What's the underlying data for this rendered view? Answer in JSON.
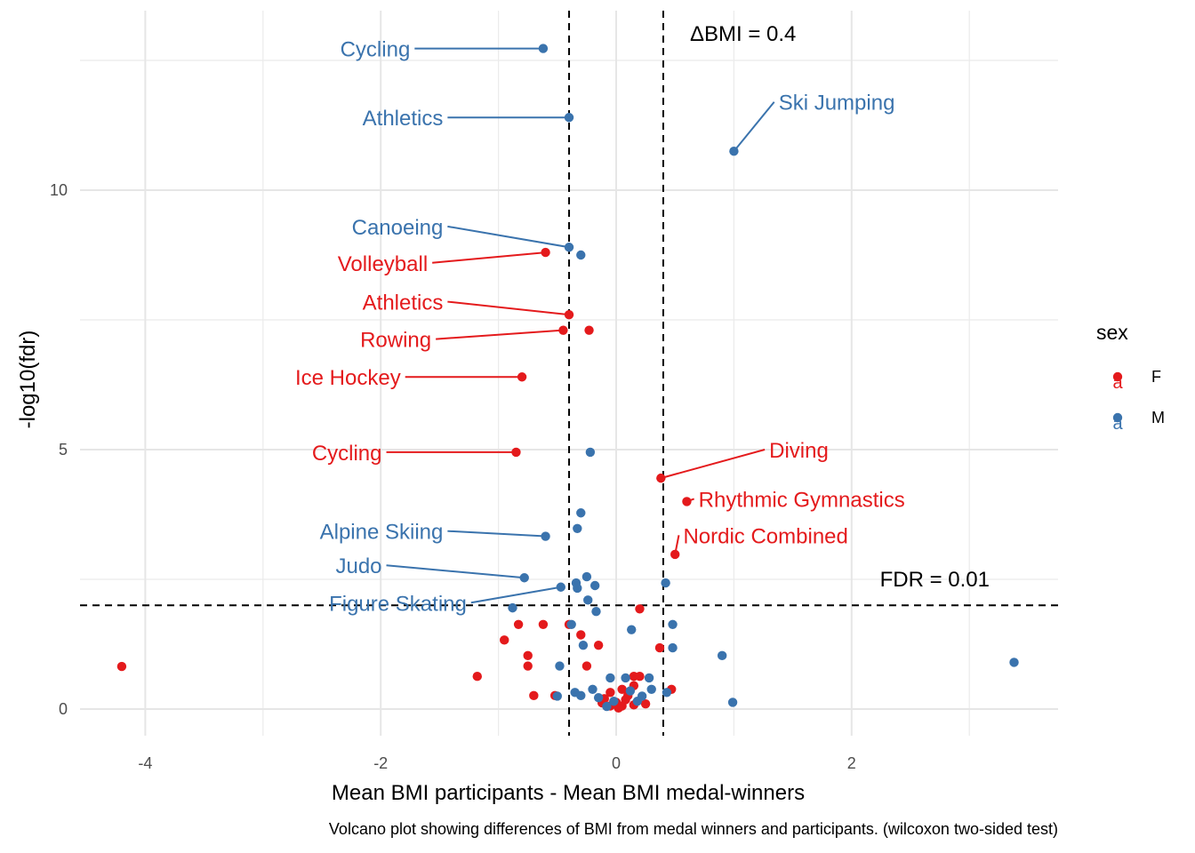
{
  "chart_data": {
    "type": "scatter",
    "title": "",
    "xlabel": "Mean BMI participants - Mean BMI medal-winners",
    "ylabel": "-log10(fdr)",
    "caption": "Volcano plot showing differences of BMI from medal winners and participants. (wilcoxon two-sided test)",
    "xlim": [
      -4.55,
      3.78
    ],
    "ylim": [
      -0.5,
      13.5
    ],
    "x_ticks": [
      -4,
      -2,
      0,
      2
    ],
    "y_ticks": [
      0,
      5,
      10
    ],
    "x_tick_labels": [
      "-4",
      "-2",
      "0",
      "2"
    ],
    "y_tick_labels": [
      "0",
      "5",
      "10"
    ],
    "grid": true,
    "legend": {
      "title": "sex",
      "position": "right",
      "key_glyph": "a",
      "entries": [
        {
          "name": "F",
          "color": "#E41A1C"
        },
        {
          "name": "M",
          "color": "#3A73AD"
        }
      ]
    },
    "reference_lines": {
      "vertical": [
        -0.4,
        0.4
      ],
      "horizontal": [
        2
      ],
      "delta_label": "ΔBMI = 0.4",
      "fdr_label": "FDR = 0.01"
    },
    "series": [
      {
        "name": "F",
        "color": "#E41A1C",
        "points": [
          [
            -0.6,
            8.8
          ],
          [
            -0.4,
            7.6
          ],
          [
            -0.45,
            7.3
          ],
          [
            -0.23,
            7.3
          ],
          [
            -0.8,
            6.4
          ],
          [
            -0.85,
            4.95
          ],
          [
            0.38,
            4.45
          ],
          [
            0.6,
            4.0
          ],
          [
            0.5,
            2.98
          ],
          [
            0.2,
            1.93
          ],
          [
            -4.2,
            0.82
          ],
          [
            -1.18,
            0.63
          ],
          [
            -0.83,
            1.63
          ],
          [
            -0.62,
            1.63
          ],
          [
            -0.95,
            1.33
          ],
          [
            -0.75,
            1.03
          ],
          [
            -0.75,
            0.83
          ],
          [
            -0.7,
            0.26
          ],
          [
            -0.52,
            0.26
          ],
          [
            -0.4,
            1.63
          ],
          [
            -0.3,
            1.43
          ],
          [
            -0.25,
            0.83
          ],
          [
            -0.15,
            1.23
          ],
          [
            0.37,
            1.18
          ],
          [
            0.47,
            0.38
          ],
          [
            0.15,
            0.63
          ],
          [
            0.2,
            0.63
          ],
          [
            0.15,
            0.45
          ],
          [
            0.05,
            0.38
          ],
          [
            -0.05,
            0.32
          ],
          [
            0.1,
            0.26
          ],
          [
            -0.1,
            0.2
          ],
          [
            0.0,
            0.13
          ],
          [
            0.05,
            0.06
          ],
          [
            -0.05,
            0.06
          ],
          [
            0.08,
            0.18
          ],
          [
            0.15,
            0.08
          ],
          [
            -0.12,
            0.12
          ],
          [
            0.25,
            0.1
          ],
          [
            0.02,
            0.02
          ]
        ],
        "labels": [
          {
            "text": "Volleyball",
            "point": [
              -0.6,
              8.8
            ],
            "at": [
              -1.6,
              8.6
            ],
            "anchor": "end"
          },
          {
            "text": "Athletics",
            "point": [
              -0.4,
              7.6
            ],
            "at": [
              -1.47,
              7.85
            ],
            "anchor": "end"
          },
          {
            "text": "Rowing",
            "point": [
              -0.45,
              7.3
            ],
            "at": [
              -1.57,
              7.13
            ],
            "anchor": "end"
          },
          {
            "text": "Ice Hockey",
            "point": [
              -0.8,
              6.4
            ],
            "at": [
              -1.83,
              6.4
            ],
            "anchor": "end"
          },
          {
            "text": "Cycling",
            "point": [
              -0.85,
              4.95
            ],
            "at": [
              -1.99,
              4.95
            ],
            "anchor": "end"
          },
          {
            "text": "Diving",
            "point": [
              0.38,
              4.45
            ],
            "at": [
              1.3,
              5.0
            ],
            "anchor": "start"
          },
          {
            "text": "Rhythmic Gymnastics",
            "point": [
              0.6,
              4.0
            ],
            "at": [
              0.7,
              4.05
            ],
            "anchor": "start"
          },
          {
            "text": "Nordic Combined",
            "point": [
              0.5,
              2.98
            ],
            "at": [
              0.57,
              3.35
            ],
            "anchor": "start"
          }
        ]
      },
      {
        "name": "M",
        "color": "#3A73AD",
        "points": [
          [
            -0.62,
            12.73
          ],
          [
            -0.4,
            11.4
          ],
          [
            1.0,
            10.75
          ],
          [
            -0.4,
            8.9
          ],
          [
            -0.3,
            8.75
          ],
          [
            -0.22,
            4.95
          ],
          [
            -0.3,
            3.78
          ],
          [
            -0.33,
            3.48
          ],
          [
            -0.6,
            3.33
          ],
          [
            -0.78,
            2.53
          ],
          [
            0.42,
            2.43
          ],
          [
            -0.47,
            2.35
          ],
          [
            -0.25,
            2.55
          ],
          [
            -0.33,
            2.33
          ],
          [
            -0.18,
            2.38
          ],
          [
            -0.34,
            2.43
          ],
          [
            -0.24,
            2.1
          ],
          [
            -0.17,
            1.88
          ],
          [
            -0.88,
            1.95
          ],
          [
            -0.38,
            1.63
          ],
          [
            0.13,
            1.53
          ],
          [
            0.48,
            1.63
          ],
          [
            0.48,
            1.18
          ],
          [
            -0.28,
            1.23
          ],
          [
            -0.48,
            0.83
          ],
          [
            0.9,
            1.03
          ],
          [
            3.38,
            0.9
          ],
          [
            0.99,
            0.13
          ],
          [
            -0.5,
            0.25
          ],
          [
            -0.35,
            0.32
          ],
          [
            -0.3,
            0.26
          ],
          [
            -0.2,
            0.38
          ],
          [
            -0.05,
            0.6
          ],
          [
            0.08,
            0.6
          ],
          [
            0.28,
            0.6
          ],
          [
            0.3,
            0.38
          ],
          [
            0.43,
            0.32
          ],
          [
            -0.15,
            0.22
          ],
          [
            0.12,
            0.35
          ],
          [
            -0.02,
            0.15
          ],
          [
            0.18,
            0.15
          ],
          [
            0.22,
            0.25
          ],
          [
            -0.08,
            0.05
          ]
        ],
        "labels": [
          {
            "text": "Cycling",
            "point": [
              -0.62,
              12.73
            ],
            "at": [
              -1.75,
              12.73
            ],
            "anchor": "end"
          },
          {
            "text": "Athletics",
            "point": [
              -0.4,
              11.4
            ],
            "at": [
              -1.47,
              11.4
            ],
            "anchor": "end"
          },
          {
            "text": "Ski Jumping",
            "point": [
              1.0,
              10.75
            ],
            "at": [
              1.38,
              11.7
            ],
            "anchor": "start"
          },
          {
            "text": "Canoeing",
            "point": [
              -0.4,
              8.9
            ],
            "at": [
              -1.47,
              9.3
            ],
            "anchor": "end"
          },
          {
            "text": "Alpine Skiing",
            "point": [
              -0.6,
              3.33
            ],
            "at": [
              -1.47,
              3.43
            ],
            "anchor": "end"
          },
          {
            "text": "Judo",
            "point": [
              -0.78,
              2.53
            ],
            "at": [
              -1.99,
              2.77
            ],
            "anchor": "end"
          },
          {
            "text": "Figure Skating",
            "point": [
              -0.47,
              2.35
            ],
            "at": [
              -1.27,
              2.05
            ],
            "anchor": "end"
          }
        ]
      }
    ]
  }
}
